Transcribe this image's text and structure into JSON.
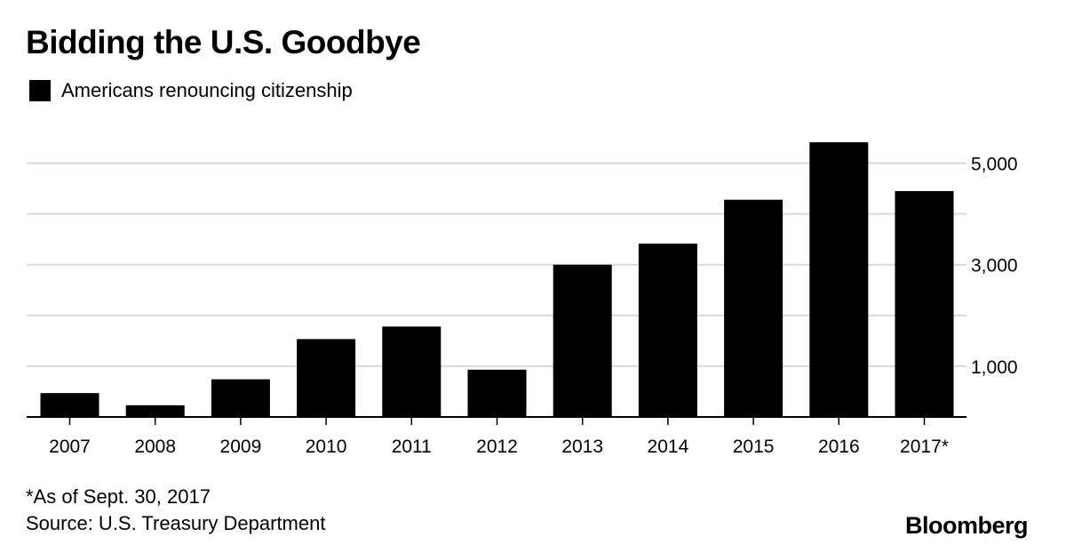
{
  "header": {
    "title": "Bidding the U.S. Goodbye"
  },
  "legend": {
    "label": "Americans renouncing citizenship",
    "color": "#000000"
  },
  "footer": {
    "footnote": "*As of Sept. 30, 2017",
    "source": "Source: U.S. Treasury Department",
    "brand": "Bloomberg"
  },
  "chart_data": {
    "type": "bar",
    "title": "Bidding the U.S. Goodbye",
    "xlabel": "",
    "ylabel": "",
    "categories": [
      "2007",
      "2008",
      "2009",
      "2010",
      "2011",
      "2012",
      "2013",
      "2014",
      "2015",
      "2016",
      "2017*"
    ],
    "series": [
      {
        "name": "Americans renouncing citizenship",
        "color": "#000000",
        "values": [
          470,
          231,
          742,
          1534,
          1781,
          932,
          2999,
          3415,
          4279,
          5411,
          4450
        ]
      }
    ],
    "ylim": [
      0,
      5500
    ],
    "yticks": [
      1000,
      3000,
      5000
    ],
    "ytick_labels": [
      "1,000",
      "3,000",
      "5,000"
    ],
    "gridlines": [
      1000,
      2000,
      3000,
      4000,
      5000
    ],
    "grid": true,
    "axis_side": "right",
    "gridline_color": "#d9d9d9",
    "axis_color": "#000000"
  }
}
